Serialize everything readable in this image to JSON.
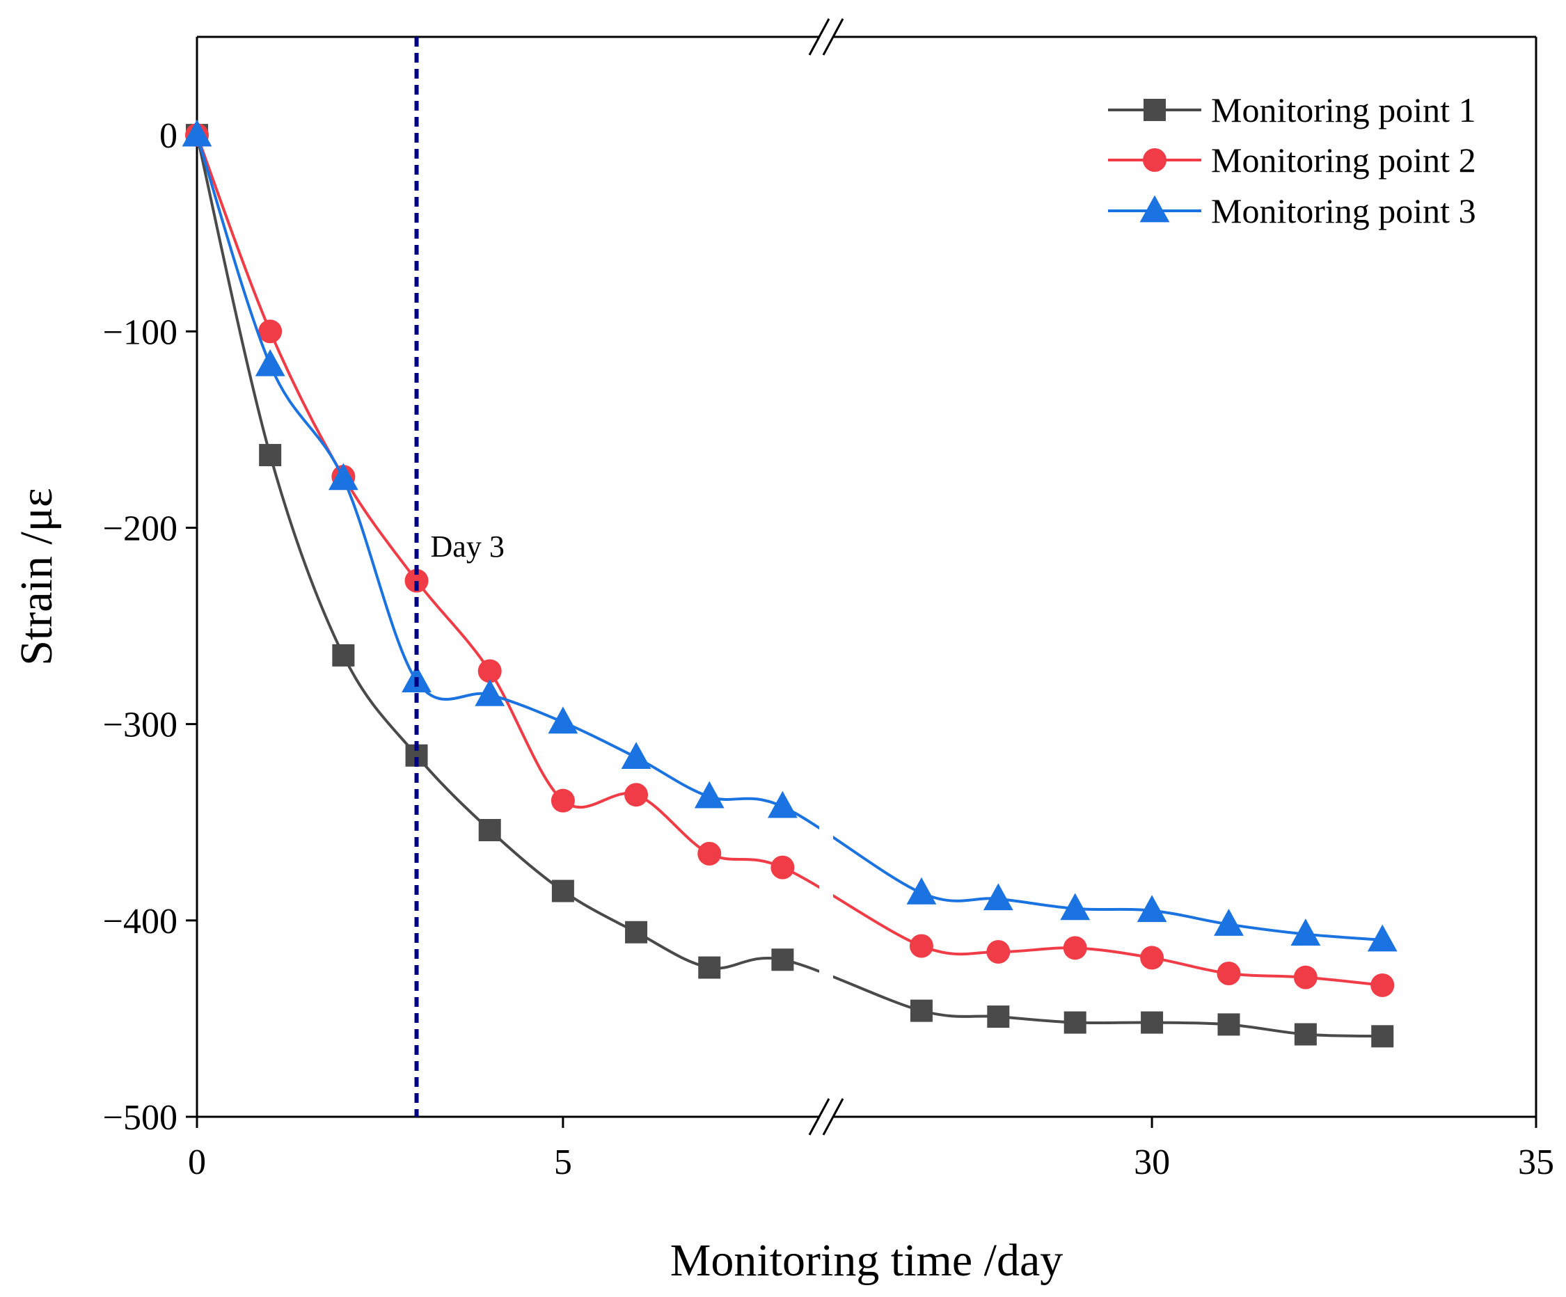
{
  "chart_data": {
    "type": "line",
    "title": "",
    "xlabel": "Monitoring time /day",
    "ylabel": "Strain /με",
    "ylim": [
      -500,
      50
    ],
    "yticks": [
      0,
      -100,
      -200,
      -300,
      -400,
      -500
    ],
    "ytick_labels": [
      "0",
      "−100",
      "−200",
      "−300",
      "−400",
      "−500"
    ],
    "x_axis_break": true,
    "x_segments": [
      {
        "range": [
          0,
          8.5
        ],
        "ticks": [
          0,
          5
        ],
        "tick_labels": [
          "0",
          "5"
        ]
      },
      {
        "range": [
          25.85,
          35
        ],
        "ticks": [
          30,
          35
        ],
        "tick_labels": [
          "30",
          "35"
        ]
      }
    ],
    "legend_position": "top-right",
    "annotations": [
      {
        "type": "vline",
        "x": 3,
        "color": "#000080",
        "style": "dashed",
        "label": "Day 3"
      }
    ],
    "series": [
      {
        "name": "Monitoring point 1",
        "marker": "square",
        "color": "#4a4a4a",
        "x": [
          0,
          1,
          2,
          3,
          4,
          5,
          6,
          7,
          8,
          27,
          28,
          29,
          30,
          31,
          32,
          33
        ],
        "y": [
          0,
          -163,
          -265,
          -316,
          -354,
          -385,
          -406,
          -424,
          -420,
          -446,
          -449,
          -452,
          -452,
          -453,
          -458,
          -459
        ]
      },
      {
        "name": "Monitoring point 2",
        "marker": "circle",
        "color": "#f03c46",
        "x": [
          0,
          1,
          2,
          3,
          4,
          5,
          6,
          7,
          8,
          27,
          28,
          29,
          30,
          31,
          32,
          33
        ],
        "y": [
          0,
          -100,
          -174,
          -227,
          -273,
          -339,
          -336,
          -366,
          -373,
          -413,
          -416,
          -414,
          -419,
          -427,
          -429,
          -433
        ]
      },
      {
        "name": "Monitoring point 3",
        "marker": "triangle",
        "color": "#1a73e0",
        "x": [
          0,
          1,
          2,
          3,
          4,
          5,
          6,
          7,
          8,
          27,
          28,
          29,
          30,
          31,
          32,
          33
        ],
        "y": [
          0,
          -117,
          -175,
          -278,
          -285,
          -299,
          -317,
          -337,
          -342,
          -386,
          -389,
          -394,
          -395,
          -402,
          -407,
          -410
        ]
      }
    ]
  }
}
